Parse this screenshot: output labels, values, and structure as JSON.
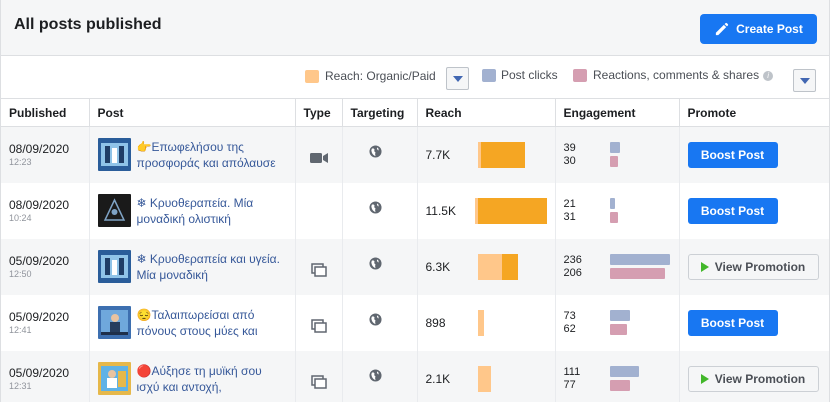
{
  "header": {
    "title": "All posts published",
    "create_button": "Create Post"
  },
  "legend": {
    "reach_label": "Reach: Organic/Paid",
    "clicks_label": "Post clicks",
    "reactions_label": "Reactions, comments & shares",
    "info": "i",
    "colors": {
      "organic": "#ffc78a",
      "paid": "#f5a623",
      "clicks": "#a2b1d0",
      "reactions": "#d59eb1"
    }
  },
  "columns": [
    "Published",
    "Post",
    "Type",
    "Targeting",
    "Reach",
    "Engagement",
    "Promote"
  ],
  "rows": [
    {
      "date": "08/09/2020",
      "time": "12:23",
      "text": "👉Επωφελήσου της προσφοράς και απόλαυσε",
      "type_icon": "video-icon",
      "reach": "7.7K",
      "reach_organic": 3,
      "reach_paid": 44,
      "clicks": "39",
      "reactions": "30",
      "clicks_bar": 0.17,
      "reactions_bar": 0.14,
      "promote": "Boost Post",
      "promote_kind": "boost"
    },
    {
      "date": "08/09/2020",
      "time": "10:24",
      "text": "❄ Κρυοθεραπεία. Μία μοναδική ολιστική",
      "type_icon": "",
      "reach": "11.5K",
      "reach_organic": 3,
      "reach_paid": 69,
      "clicks": "21",
      "reactions": "31",
      "clicks_bar": 0.09,
      "reactions_bar": 0.14,
      "promote": "Boost Post",
      "promote_kind": "boost"
    },
    {
      "date": "05/09/2020",
      "time": "12:50",
      "text": "❄ Κρυοθεραπεία και υγεία. Μία μοναδική",
      "type_icon": "carousel-icon",
      "reach": "6.3K",
      "reach_organic": 24,
      "reach_paid": 16,
      "clicks": "236",
      "reactions": "206",
      "clicks_bar": 1.0,
      "reactions_bar": 0.92,
      "promote": "View Promotion",
      "promote_kind": "view"
    },
    {
      "date": "05/09/2020",
      "time": "12:41",
      "text": "😔Ταλαιπωρείσαι από πόνους στους μύες και",
      "type_icon": "carousel-icon",
      "reach": "898",
      "reach_organic": 6,
      "reach_paid": 0,
      "clicks": "73",
      "reactions": "62",
      "clicks_bar": 0.33,
      "reactions_bar": 0.28,
      "promote": "Boost Post",
      "promote_kind": "boost"
    },
    {
      "date": "05/09/2020",
      "time": "12:31",
      "text": "🔴Αύξησε τη μυϊκή σου ισχύ και αντοχή,",
      "type_icon": "carousel-icon",
      "reach": "2.1K",
      "reach_organic": 13,
      "reach_paid": 0,
      "clicks": "111",
      "reactions": "77",
      "clicks_bar": 0.49,
      "reactions_bar": 0.34,
      "promote": "View Promotion",
      "promote_kind": "view"
    }
  ]
}
